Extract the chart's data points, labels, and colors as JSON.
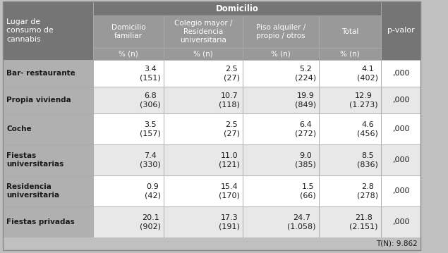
{
  "title_top": "Domicilio",
  "col_headers": [
    "Domicilio\nfamiliar",
    "Colegio mayor /\nResidencia\nuniversitaria",
    "Piso alquiler /\npropio / otros",
    "Total"
  ],
  "row_header_label": "Lugar de\nconsumo de\ncannabis",
  "row_labels": [
    "Bar- restaurante",
    "Propia vivienda",
    "Coche",
    "Fiestas\nuniversitarias",
    "Residencia\nuniversitaria",
    "Fiestas privadas"
  ],
  "data": [
    [
      "3.4\n(151)",
      "2.5\n(27)",
      "5.2\n(224)",
      "4.1\n(402)",
      ",000"
    ],
    [
      "6.8\n(306)",
      "10.7\n(118)",
      "19.9\n(849)",
      "12.9\n(1.273)",
      ",000"
    ],
    [
      "3.5\n(157)",
      "2.5\n(27)",
      "6.4\n(272)",
      "4.6\n(456)",
      ",000"
    ],
    [
      "7.4\n(330)",
      "11.0\n(121)",
      "9.0\n(385)",
      "8.5\n(836)",
      ",000"
    ],
    [
      "0.9\n(42)",
      "15.4\n(170)",
      "1.5\n(66)",
      "2.8\n(278)",
      ",000"
    ],
    [
      "20.1\n(902)",
      "17.3\n(191)",
      "24.7\n(1.058)",
      "21.8\n(2.151)",
      ",000"
    ]
  ],
  "footer": "T(N): 9.862",
  "color_header_dark": "#757575",
  "color_header_mid": "#999999",
  "color_row_label": "#b0b0b0",
  "color_white": "#ffffff",
  "color_light_gray": "#e8e8e8",
  "color_footer": "#c0c0c0",
  "header_text_color": "#ffffff",
  "row_label_text_color": "#ffffff",
  "body_text_color": "#1a1a1a",
  "pvalue_text_color": "#1a1a1a"
}
